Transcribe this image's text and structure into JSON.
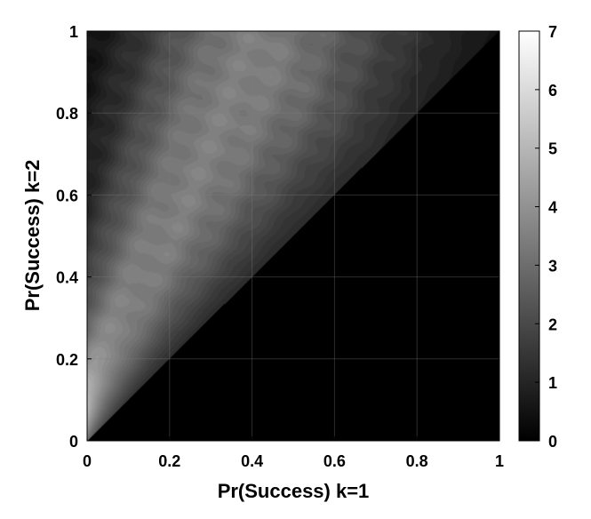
{
  "chart_data": {
    "type": "heatmap",
    "title": "",
    "xlabel": "Pr(Success) k=1",
    "ylabel": "Pr(Success) k=2",
    "xlim": [
      0,
      1
    ],
    "ylim": [
      0,
      1
    ],
    "xticks": [
      "0",
      "0.2",
      "0.4",
      "0.6",
      "0.8",
      "1"
    ],
    "yticks": [
      "0",
      "0.2",
      "0.4",
      "0.6",
      "0.8",
      "1"
    ],
    "colorbar": {
      "range": [
        0,
        7
      ],
      "ticks": [
        "0",
        "1",
        "2",
        "3",
        "4",
        "5",
        "6",
        "7"
      ],
      "colormap": "gray"
    },
    "grid": true,
    "description_values": {
      "peak_value": 7,
      "peak_location": [
        0.02,
        0.06
      ],
      "ridge_points": [
        {
          "x": 0.02,
          "y": 0.06,
          "value": 7.0
        },
        {
          "x": 0.05,
          "y": 0.15,
          "value": 5.8
        },
        {
          "x": 0.1,
          "y": 0.28,
          "value": 5.0
        },
        {
          "x": 0.2,
          "y": 0.45,
          "value": 4.3
        },
        {
          "x": 0.3,
          "y": 0.58,
          "value": 4.0
        },
        {
          "x": 0.4,
          "y": 0.7,
          "value": 3.7
        },
        {
          "x": 0.5,
          "y": 0.8,
          "value": 3.5
        },
        {
          "x": 0.6,
          "y": 0.9,
          "value": 3.2
        },
        {
          "x": 0.7,
          "y": 0.97,
          "value": 3.0
        }
      ],
      "upper_left_corner_value": 0.5,
      "lower_right_region_value": 0
    }
  }
}
